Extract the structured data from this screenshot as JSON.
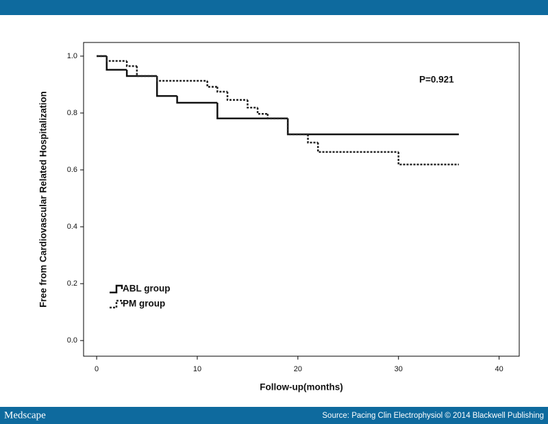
{
  "chart_data": {
    "type": "step",
    "y_label": "Free from Cardiovascular Related Hospitalization",
    "x_label": "Follow-up(months)",
    "annotation": "P=0.921",
    "xlim": [
      -1.3,
      42
    ],
    "ylim": [
      -0.055,
      1.048
    ],
    "xticks": [
      0,
      10,
      20,
      30,
      40
    ],
    "yticks": [
      {
        "value": 0,
        "label": "0.0"
      },
      {
        "value": 0.2,
        "label": "0.2"
      },
      {
        "value": 0.4,
        "label": "0.4"
      },
      {
        "value": 0.6,
        "label": "0.6"
      },
      {
        "value": 0.8,
        "label": "0.8"
      },
      {
        "value": 1,
        "label": "1.0"
      }
    ],
    "legend": "lower left",
    "series": [
      {
        "name": "ABL group",
        "color": "#111111",
        "dash": "none",
        "x": [
          0,
          1,
          3,
          6,
          8,
          12,
          19,
          36
        ],
        "values": [
          1.0,
          0.952,
          0.93,
          0.86,
          0.836,
          0.781,
          0.725,
          0.725
        ]
      },
      {
        "name": "PM group",
        "color": "#222222",
        "dash": "3,2",
        "x": [
          0,
          1,
          3,
          4,
          6,
          11,
          12,
          13,
          15,
          16,
          17,
          19,
          21,
          22,
          30,
          36
        ],
        "values": [
          1.0,
          0.983,
          0.965,
          0.93,
          0.913,
          0.892,
          0.875,
          0.846,
          0.819,
          0.797,
          0.781,
          0.725,
          0.696,
          0.663,
          0.619,
          0.619
        ]
      }
    ]
  },
  "footer": {
    "logo": "Medscape",
    "source": "Source: Pacing Clin Electrophysiol © 2014 Blackwell Publishing"
  }
}
